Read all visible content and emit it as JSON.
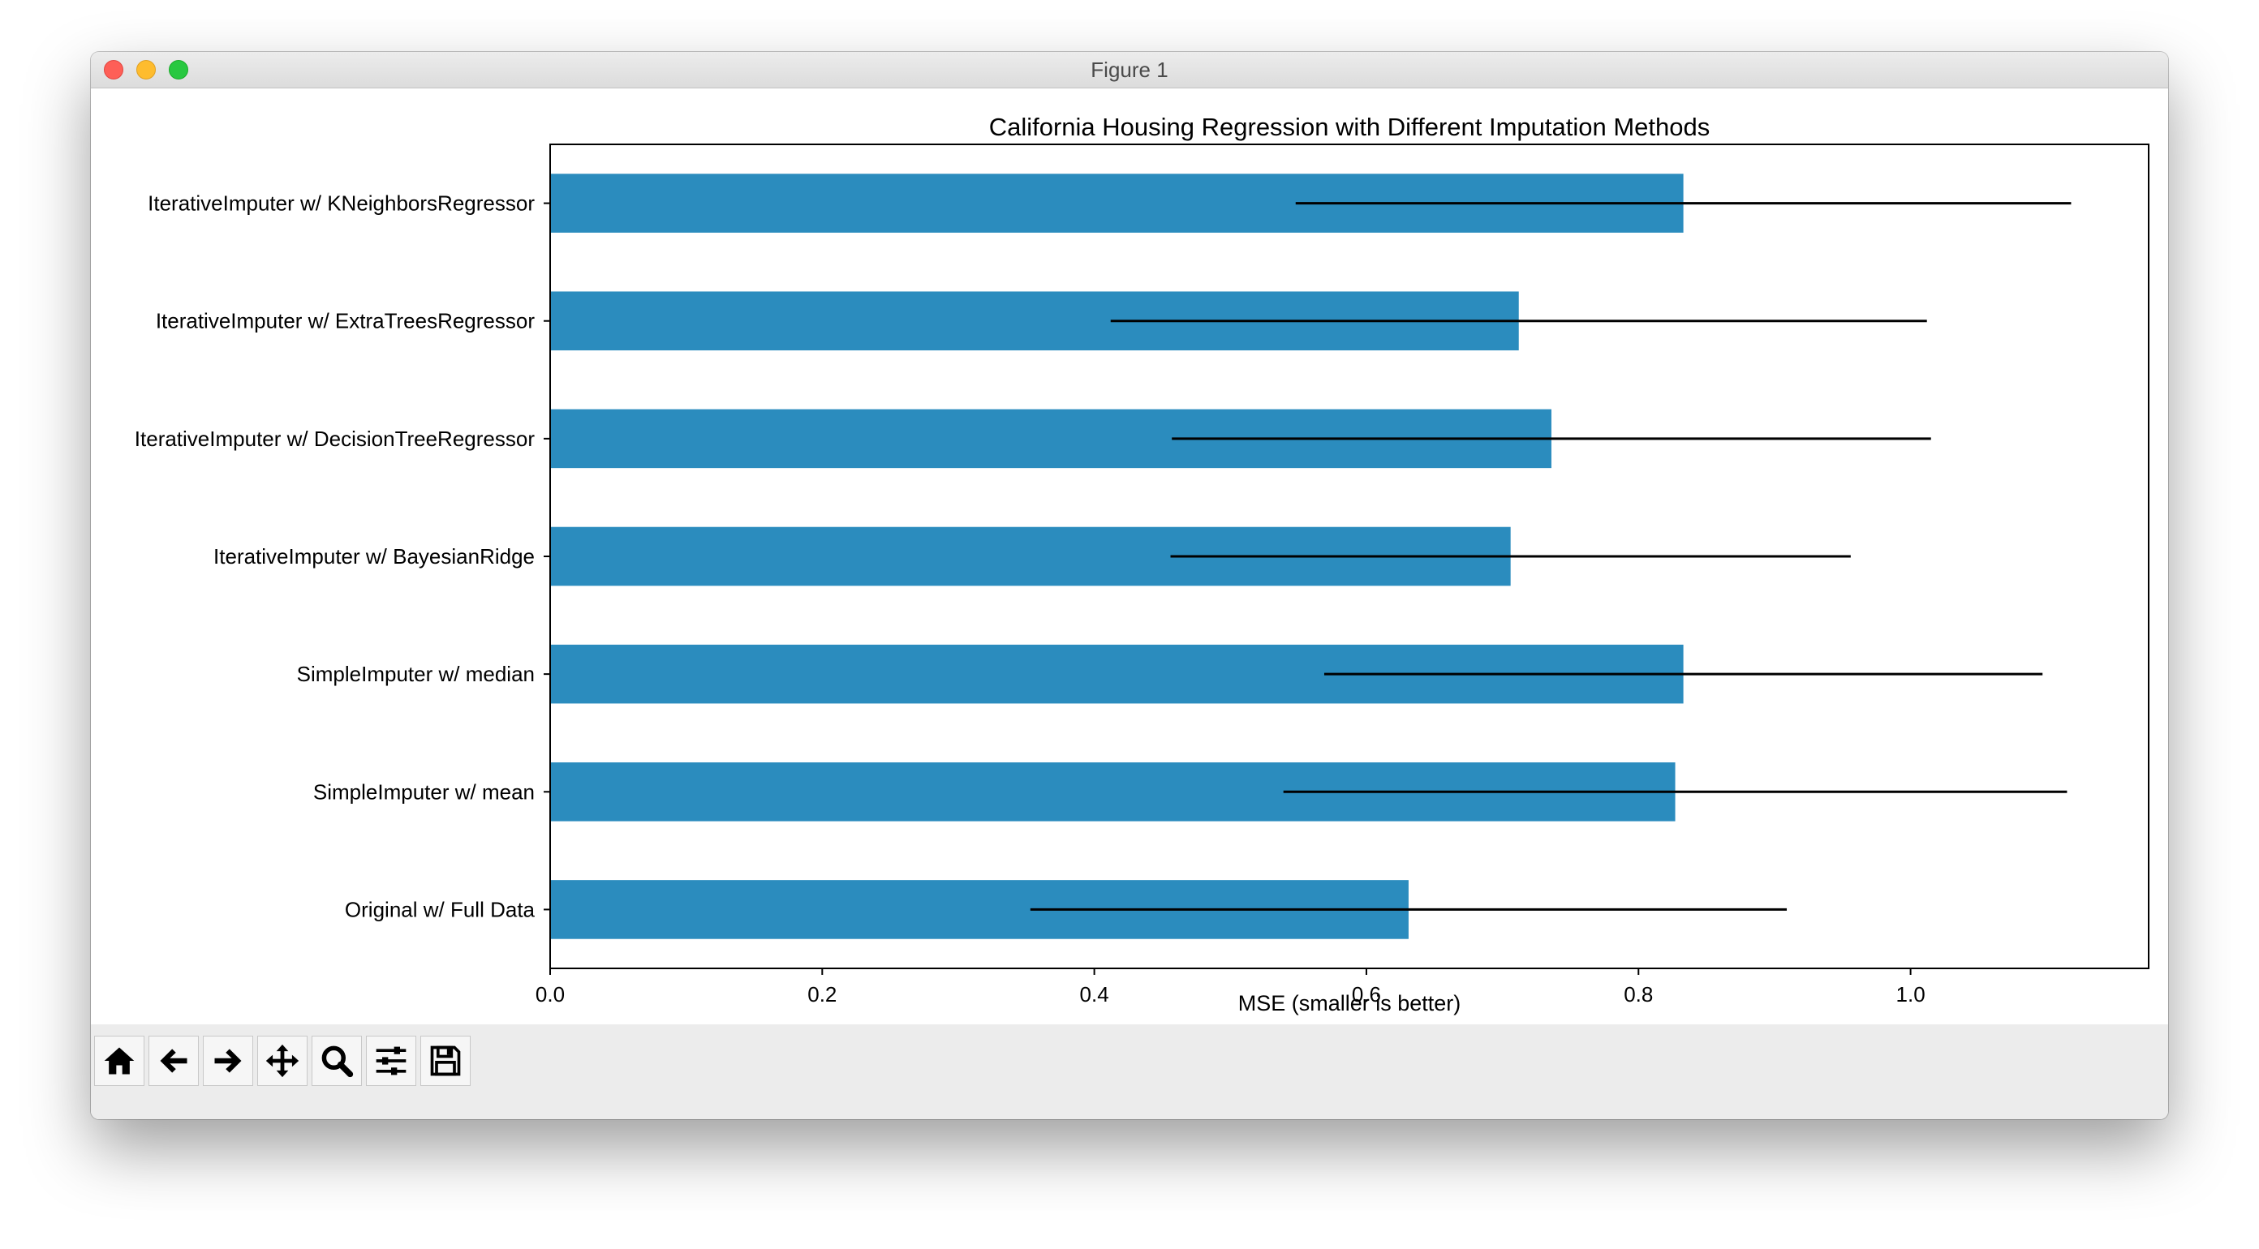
{
  "window": {
    "title": "Figure 1",
    "controls": [
      "close",
      "minimize",
      "maximize"
    ]
  },
  "toolbar": {
    "buttons": [
      {
        "name": "home-button",
        "icon": "home-icon",
        "tooltip": "Home"
      },
      {
        "name": "back-button",
        "icon": "arrow-left-icon",
        "tooltip": "Back"
      },
      {
        "name": "forward-button",
        "icon": "arrow-right-icon",
        "tooltip": "Forward"
      },
      {
        "name": "pan-button",
        "icon": "move-icon",
        "tooltip": "Pan"
      },
      {
        "name": "zoom-button",
        "icon": "zoom-icon",
        "tooltip": "Zoom"
      },
      {
        "name": "configure-subplots-button",
        "icon": "sliders-icon",
        "tooltip": "Subplots"
      },
      {
        "name": "save-button",
        "icon": "save-icon",
        "tooltip": "Save"
      }
    ]
  },
  "colors": {
    "bar": "#2b8cbe",
    "errorbar": "#000000",
    "axis": "#000000",
    "text": "#000000"
  },
  "chart_data": {
    "type": "bar",
    "orientation": "horizontal",
    "title": "California Housing Regression with Different Imputation Methods",
    "xlabel": "MSE (smaller is better)",
    "ylabel": "",
    "xlim": [
      0,
      1.175
    ],
    "xticks": [
      0.0,
      0.2,
      0.4,
      0.6,
      0.8,
      1.0
    ],
    "xtick_labels": [
      "0.0",
      "0.2",
      "0.4",
      "0.6",
      "0.8",
      "1.0"
    ],
    "grid": false,
    "categories": [
      "Original w/ Full Data",
      "SimpleImputer w/ mean",
      "SimpleImputer w/ median",
      "IterativeImputer w/ BayesianRidge",
      "IterativeImputer w/ DecisionTreeRegressor",
      "IterativeImputer w/ ExtraTreesRegressor",
      "IterativeImputer w/ KNeighborsRegressor"
    ],
    "values": [
      0.631,
      0.827,
      0.833,
      0.706,
      0.736,
      0.712,
      0.833
    ],
    "errors": [
      0.278,
      0.288,
      0.264,
      0.25,
      0.279,
      0.3,
      0.285
    ]
  }
}
